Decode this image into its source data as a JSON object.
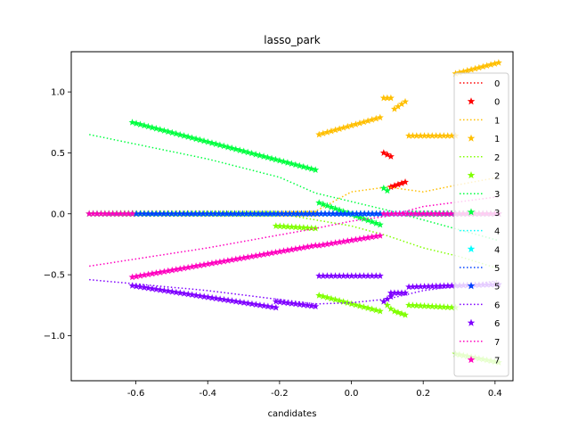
{
  "chart_data": {
    "type": "line",
    "title": "lasso_park",
    "xlabel": "candidates",
    "ylabel": "",
    "xlim": [
      -0.78,
      0.45
    ],
    "ylim": [
      -1.37,
      1.33
    ],
    "xticks": [
      "-0.6",
      "-0.4",
      "-0.2",
      "0.0",
      "0.2",
      "0.4"
    ],
    "xtick_values": [
      -0.6,
      -0.4,
      -0.2,
      0.0,
      0.2,
      0.4
    ],
    "yticks": [
      "−1.0",
      "−0.5",
      "0.0",
      "0.5",
      "1.0"
    ],
    "ytick_values": [
      -1.0,
      -0.5,
      0.0,
      0.5,
      1.0
    ],
    "legend_position": "right",
    "grid": false,
    "colors": [
      "#ff0000",
      "#ffbf00",
      "#80ff00",
      "#00ff40",
      "#00ffff",
      "#0040ff",
      "#7f00ff",
      "#ff00bf"
    ],
    "series": [
      {
        "name": "0",
        "dotted": {
          "x": [
            -0.73,
            0.41
          ],
          "y": [
            0.0,
            0.0
          ]
        },
        "stars": [
          {
            "x": [
              -0.73,
              -0.61
            ],
            "y": [
              0.0,
              0.0
            ]
          },
          {
            "x": [
              -0.61,
              0.08
            ],
            "y": [
              0.0,
              0.0
            ]
          },
          {
            "x": [
              0.09,
              0.11
            ],
            "y": [
              0.5,
              0.47
            ]
          },
          {
            "x": [
              0.11,
              0.15
            ],
            "y": [
              0.22,
              0.26
            ]
          },
          {
            "x": [
              0.16,
              0.41
            ],
            "y": [
              0.0,
              0.0
            ]
          }
        ]
      },
      {
        "name": "1",
        "dotted": {
          "x": [
            -0.73,
            -0.4,
            -0.1,
            0.0,
            0.1,
            0.2,
            0.3,
            0.41
          ],
          "y": [
            0.0,
            0.0,
            0.02,
            0.18,
            0.22,
            0.18,
            0.24,
            0.3
          ]
        },
        "stars": [
          {
            "x": [
              -0.73,
              -0.1
            ],
            "y": [
              0.0,
              0.0
            ]
          },
          {
            "x": [
              -0.09,
              0.08
            ],
            "y": [
              0.65,
              0.79
            ]
          },
          {
            "x": [
              0.09,
              0.11
            ],
            "y": [
              0.95,
              0.95
            ]
          },
          {
            "x": [
              0.12,
              0.15
            ],
            "y": [
              0.86,
              0.92
            ]
          },
          {
            "x": [
              0.16,
              0.29
            ],
            "y": [
              0.64,
              0.64
            ]
          },
          {
            "x": [
              0.29,
              0.41
            ],
            "y": [
              1.15,
              1.24
            ]
          }
        ]
      },
      {
        "name": "2",
        "dotted": {
          "x": [
            -0.73,
            -0.2,
            -0.1,
            0.0,
            0.1,
            0.2,
            0.3,
            0.41
          ],
          "y": [
            0.0,
            0.0,
            -0.05,
            -0.1,
            -0.18,
            -0.28,
            -0.35,
            -0.45
          ]
        },
        "stars": [
          {
            "x": [
              -0.73,
              -0.21
            ],
            "y": [
              0.0,
              0.0
            ]
          },
          {
            "x": [
              -0.21,
              -0.1
            ],
            "y": [
              -0.1,
              -0.12
            ]
          },
          {
            "x": [
              -0.09,
              0.08
            ],
            "y": [
              -0.67,
              -0.8
            ]
          },
          {
            "x": [
              0.09,
              0.11
            ],
            "y": [
              -0.72,
              -0.78
            ]
          },
          {
            "x": [
              0.12,
              0.15
            ],
            "y": [
              -0.8,
              -0.83
            ]
          },
          {
            "x": [
              0.16,
              0.29
            ],
            "y": [
              -0.75,
              -0.77
            ]
          },
          {
            "x": [
              0.29,
              0.41
            ],
            "y": [
              -1.15,
              -1.22
            ]
          }
        ]
      },
      {
        "name": "3",
        "dotted": {
          "x": [
            -0.73,
            -0.4,
            -0.2,
            -0.1,
            0.0,
            0.1,
            0.2,
            0.41
          ],
          "y": [
            0.65,
            0.45,
            0.3,
            0.17,
            0.1,
            0.03,
            -0.05,
            -0.22
          ]
        },
        "stars": [
          {
            "x": [
              -0.61,
              -0.1
            ],
            "y": [
              0.75,
              0.36
            ]
          },
          {
            "x": [
              -0.09,
              0.08
            ],
            "y": [
              0.09,
              -0.09
            ]
          },
          {
            "x": [
              0.09,
              0.1
            ],
            "y": [
              0.21,
              0.19
            ]
          },
          {
            "x": [
              0.16,
              0.41
            ],
            "y": [
              0.0,
              0.0
            ]
          }
        ]
      },
      {
        "name": "4",
        "dotted": {
          "x": [
            -0.73,
            0.41
          ],
          "y": [
            0.0,
            0.0
          ]
        },
        "stars": [
          {
            "x": [
              -0.73,
              0.41
            ],
            "y": [
              0.0,
              0.0
            ]
          }
        ]
      },
      {
        "name": "5",
        "dotted": {
          "x": [
            -0.73,
            0.41
          ],
          "y": [
            0.0,
            0.0
          ]
        },
        "stars": [
          {
            "x": [
              -0.61,
              0.08
            ],
            "y": [
              0.0,
              0.0
            ]
          }
        ]
      },
      {
        "name": "6",
        "dotted": {
          "x": [
            -0.73,
            -0.4,
            -0.1,
            0.0,
            0.1,
            0.2,
            0.41
          ],
          "y": [
            -0.54,
            -0.63,
            -0.74,
            -0.73,
            -0.7,
            -0.63,
            -0.55
          ]
        },
        "stars": [
          {
            "x": [
              -0.61,
              -0.21
            ],
            "y": [
              -0.59,
              -0.77
            ]
          },
          {
            "x": [
              -0.21,
              -0.1
            ],
            "y": [
              -0.72,
              -0.76
            ]
          },
          {
            "x": [
              -0.09,
              0.08
            ],
            "y": [
              -0.51,
              -0.51
            ]
          },
          {
            "x": [
              0.09,
              0.11
            ],
            "y": [
              -0.72,
              -0.68
            ]
          },
          {
            "x": [
              0.11,
              0.15
            ],
            "y": [
              -0.65,
              -0.65
            ]
          },
          {
            "x": [
              0.16,
              0.41
            ],
            "y": [
              -0.6,
              -0.58
            ]
          }
        ]
      },
      {
        "name": "7",
        "dotted": {
          "x": [
            -0.73,
            -0.4,
            -0.1,
            0.0,
            0.1,
            0.2,
            0.41
          ],
          "y": [
            -0.43,
            -0.28,
            -0.12,
            -0.06,
            -0.02,
            0.06,
            0.14
          ]
        },
        "stars": [
          {
            "x": [
              -0.73,
              -0.61
            ],
            "y": [
              0.0,
              0.0
            ]
          },
          {
            "x": [
              -0.61,
              -0.1
            ],
            "y": [
              -0.52,
              -0.26
            ]
          },
          {
            "x": [
              -0.09,
              0.08
            ],
            "y": [
              -0.26,
              -0.18
            ]
          },
          {
            "x": [
              0.09,
              0.41
            ],
            "y": [
              0.0,
              0.0
            ]
          }
        ]
      }
    ]
  }
}
